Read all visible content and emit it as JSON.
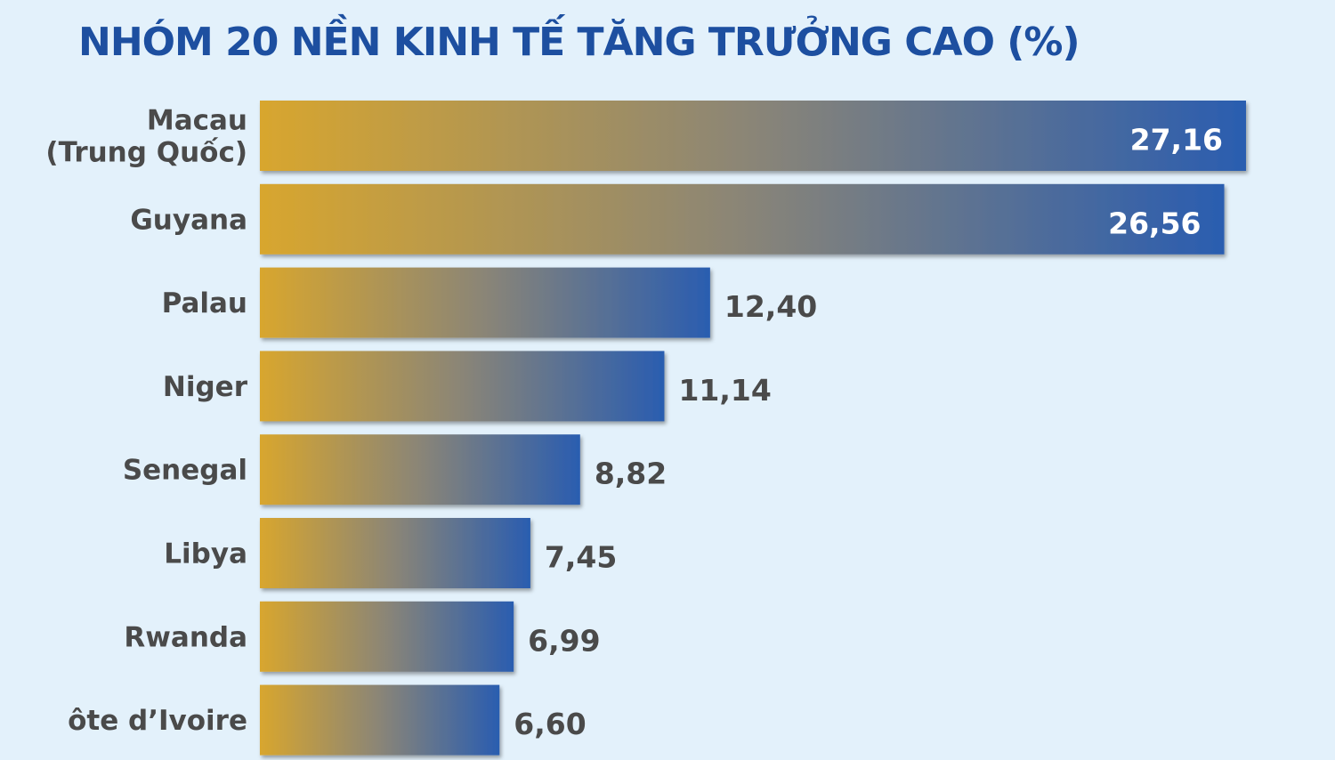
{
  "title": "NHÓM 20 NỀN KINH TẾ TĂNG TRƯỞNG CAO (%)",
  "colors": {
    "background": "#e3f1fb",
    "title": "#1d4fa0",
    "bar_start": "#d8a62e",
    "bar_mid": "#8a8577",
    "bar_end": "#2a5db0",
    "label": "#4a4a4a",
    "value_inside": "#ffffff",
    "value_outside": "#4a4a4a"
  },
  "chart_data": {
    "type": "bar",
    "orientation": "horizontal",
    "title": "NHÓM 20 NỀN KINH TẾ TĂNG TRƯỞNG CAO (%)",
    "categories": [
      [
        "Macau",
        "(Trung Quốc)"
      ],
      [
        "Guyana"
      ],
      [
        "Palau"
      ],
      [
        "Niger"
      ],
      [
        "Senegal"
      ],
      [
        "Libya"
      ],
      [
        "Rwanda"
      ],
      [
        "ôte d’Ivoire"
      ]
    ],
    "values": [
      27.16,
      26.56,
      12.4,
      11.14,
      8.82,
      7.45,
      6.99,
      6.6
    ],
    "value_labels": [
      "27,16",
      "26,56",
      "12,40",
      "11,14",
      "8,82",
      "7,45",
      "6,99",
      "6,60"
    ],
    "xlim": [
      0,
      27.16
    ],
    "grid": false,
    "legend": "none"
  }
}
